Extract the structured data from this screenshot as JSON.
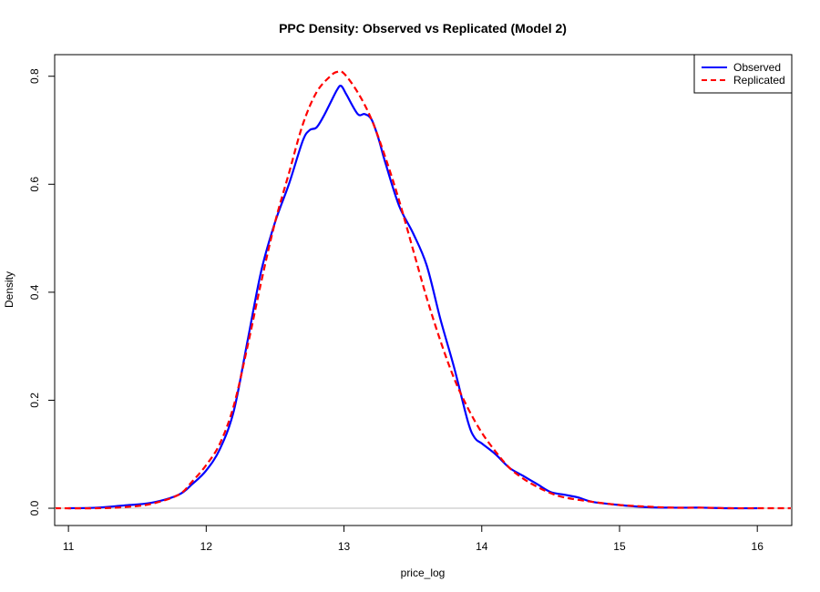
{
  "chart_data": {
    "type": "line",
    "title": "PPC Density: Observed vs Replicated (Model 2)",
    "xlabel": "price_log",
    "ylabel": "Density",
    "xlim": [
      10.9,
      16.25
    ],
    "ylim": [
      -0.032,
      0.84
    ],
    "x_ticks": [
      11,
      12,
      13,
      14,
      15,
      16
    ],
    "x_tick_labels": [
      "11",
      "12",
      "13",
      "14",
      "15",
      "16"
    ],
    "y_ticks": [
      0.0,
      0.2,
      0.4,
      0.6,
      0.8
    ],
    "y_tick_labels": [
      "0.0",
      "0.2",
      "0.4",
      "0.6",
      "0.8"
    ],
    "baseline": 0,
    "legend_position": "top-right",
    "series": [
      {
        "name": "Observed",
        "color": "#0000ff",
        "style": "solid",
        "x": [
          11.0,
          11.2,
          11.4,
          11.6,
          11.8,
          11.9,
          12.0,
          12.1,
          12.2,
          12.3,
          12.4,
          12.5,
          12.6,
          12.7,
          12.75,
          12.8,
          12.85,
          12.9,
          12.95,
          12.98,
          13.02,
          13.1,
          13.15,
          13.2,
          13.25,
          13.3,
          13.4,
          13.5,
          13.6,
          13.7,
          13.8,
          13.9,
          13.95,
          14.0,
          14.1,
          14.2,
          14.3,
          14.4,
          14.5,
          14.6,
          14.7,
          14.8,
          15.0,
          15.2,
          15.4,
          15.6,
          15.8,
          16.0
        ],
        "y": [
          0.0,
          0.001,
          0.005,
          0.01,
          0.025,
          0.045,
          0.07,
          0.11,
          0.18,
          0.31,
          0.44,
          0.53,
          0.6,
          0.68,
          0.7,
          0.705,
          0.725,
          0.75,
          0.775,
          0.782,
          0.765,
          0.73,
          0.73,
          0.72,
          0.685,
          0.64,
          0.56,
          0.51,
          0.45,
          0.35,
          0.26,
          0.16,
          0.13,
          0.12,
          0.1,
          0.075,
          0.06,
          0.045,
          0.03,
          0.025,
          0.02,
          0.012,
          0.006,
          0.002,
          0.001,
          0.001,
          0.0,
          0.0
        ]
      },
      {
        "name": "Replicated",
        "color": "#ff0000",
        "style": "dashed",
        "x": [
          10.9,
          11.2,
          11.4,
          11.6,
          11.8,
          11.9,
          12.0,
          12.1,
          12.2,
          12.3,
          12.4,
          12.5,
          12.6,
          12.7,
          12.8,
          12.9,
          12.95,
          13.0,
          13.1,
          13.2,
          13.3,
          13.4,
          13.5,
          13.6,
          13.7,
          13.8,
          13.9,
          14.0,
          14.1,
          14.2,
          14.3,
          14.4,
          14.5,
          14.6,
          14.8,
          15.0,
          15.2,
          15.4,
          15.6,
          15.8,
          16.0,
          16.25
        ],
        "y": [
          0.0,
          0.0,
          0.002,
          0.008,
          0.025,
          0.05,
          0.08,
          0.12,
          0.19,
          0.3,
          0.42,
          0.53,
          0.62,
          0.71,
          0.77,
          0.8,
          0.808,
          0.805,
          0.77,
          0.72,
          0.65,
          0.57,
          0.48,
          0.39,
          0.31,
          0.24,
          0.185,
          0.14,
          0.105,
          0.075,
          0.055,
          0.04,
          0.028,
          0.02,
          0.012,
          0.006,
          0.003,
          0.001,
          0.001,
          0.0,
          0.0,
          0.0
        ]
      }
    ]
  }
}
